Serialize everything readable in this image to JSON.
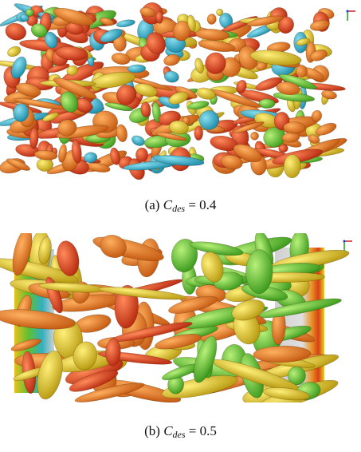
{
  "figure": {
    "panels": [
      {
        "caption_prefix": "(a) ",
        "symbol": "C",
        "subscript": "des",
        "relation": " = ",
        "value": "0.4"
      },
      {
        "caption_prefix": "(b) ",
        "symbol": "C",
        "subscript": "des",
        "relation": " = ",
        "value": "0.5"
      }
    ]
  },
  "colors": {
    "red": "#d8401c",
    "orange": "#e0781e",
    "yellow": "#dcc21c",
    "green": "#5cc82c",
    "cyan": "#2ab0c8",
    "gray_slab": "#d6d6d6"
  }
}
